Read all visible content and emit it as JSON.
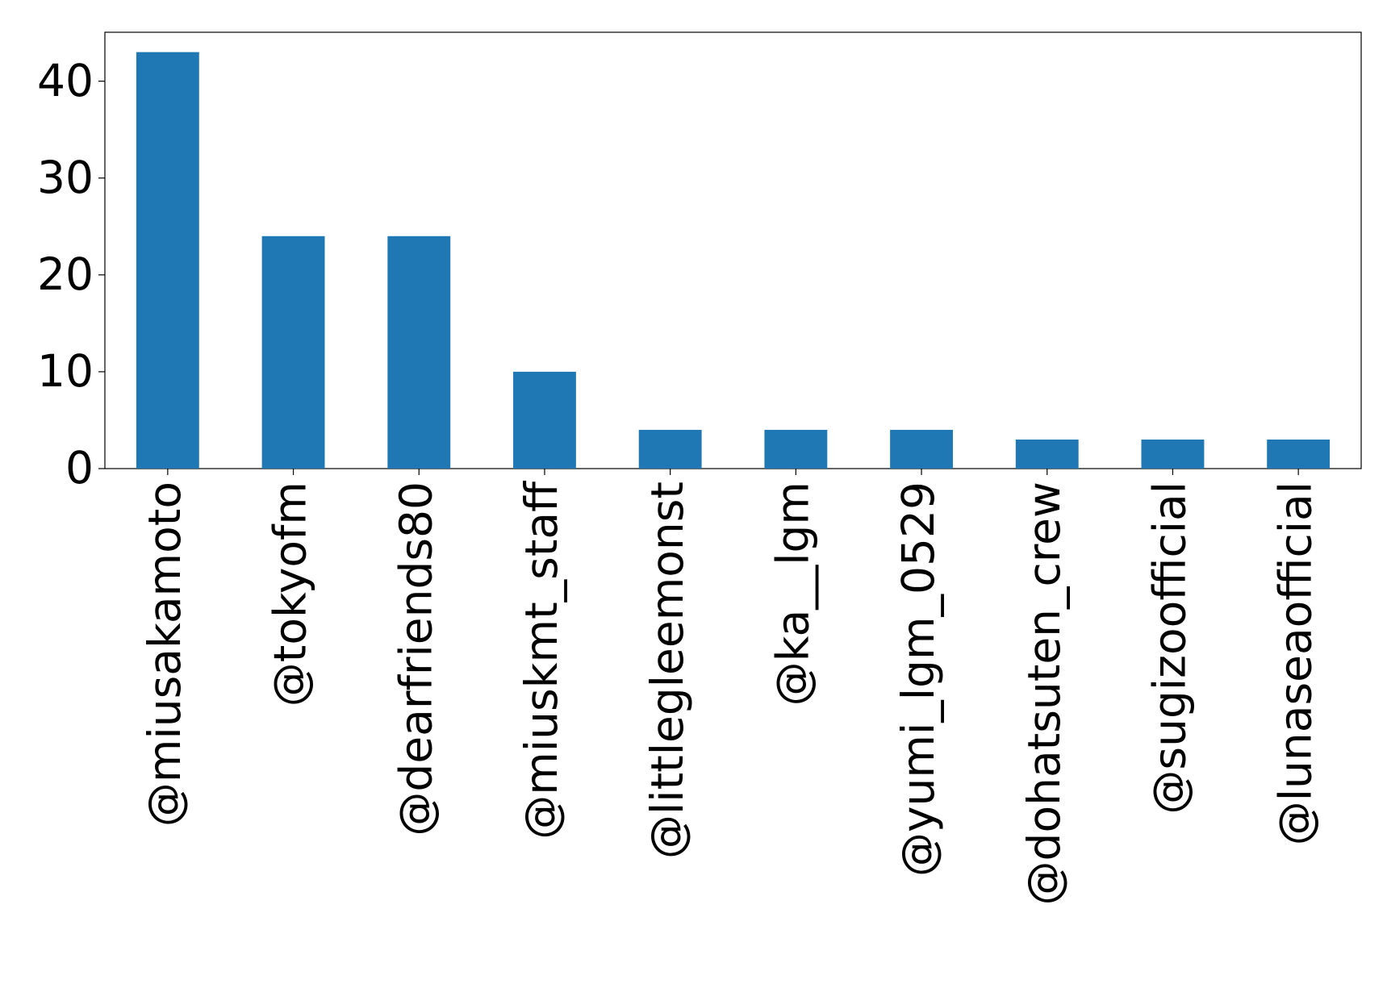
{
  "chart_data": {
    "type": "bar",
    "categories": [
      "@miusakamoto",
      "@tokyofm",
      "@dearfriends80",
      "@miuskmt_staff",
      "@littlegleemonst",
      "@ka__lgm",
      "@yumi_lgm_0529",
      "@dohatsuten_crew",
      "@sugizoofficial",
      "@lunaseaofficial"
    ],
    "values": [
      43,
      24,
      24,
      10,
      4,
      4,
      4,
      3,
      3,
      3
    ],
    "color": "#1f77b4",
    "ylim": [
      0,
      45.05
    ],
    "yticks": [
      0,
      10,
      20,
      30,
      40
    ],
    "grid": false
  }
}
